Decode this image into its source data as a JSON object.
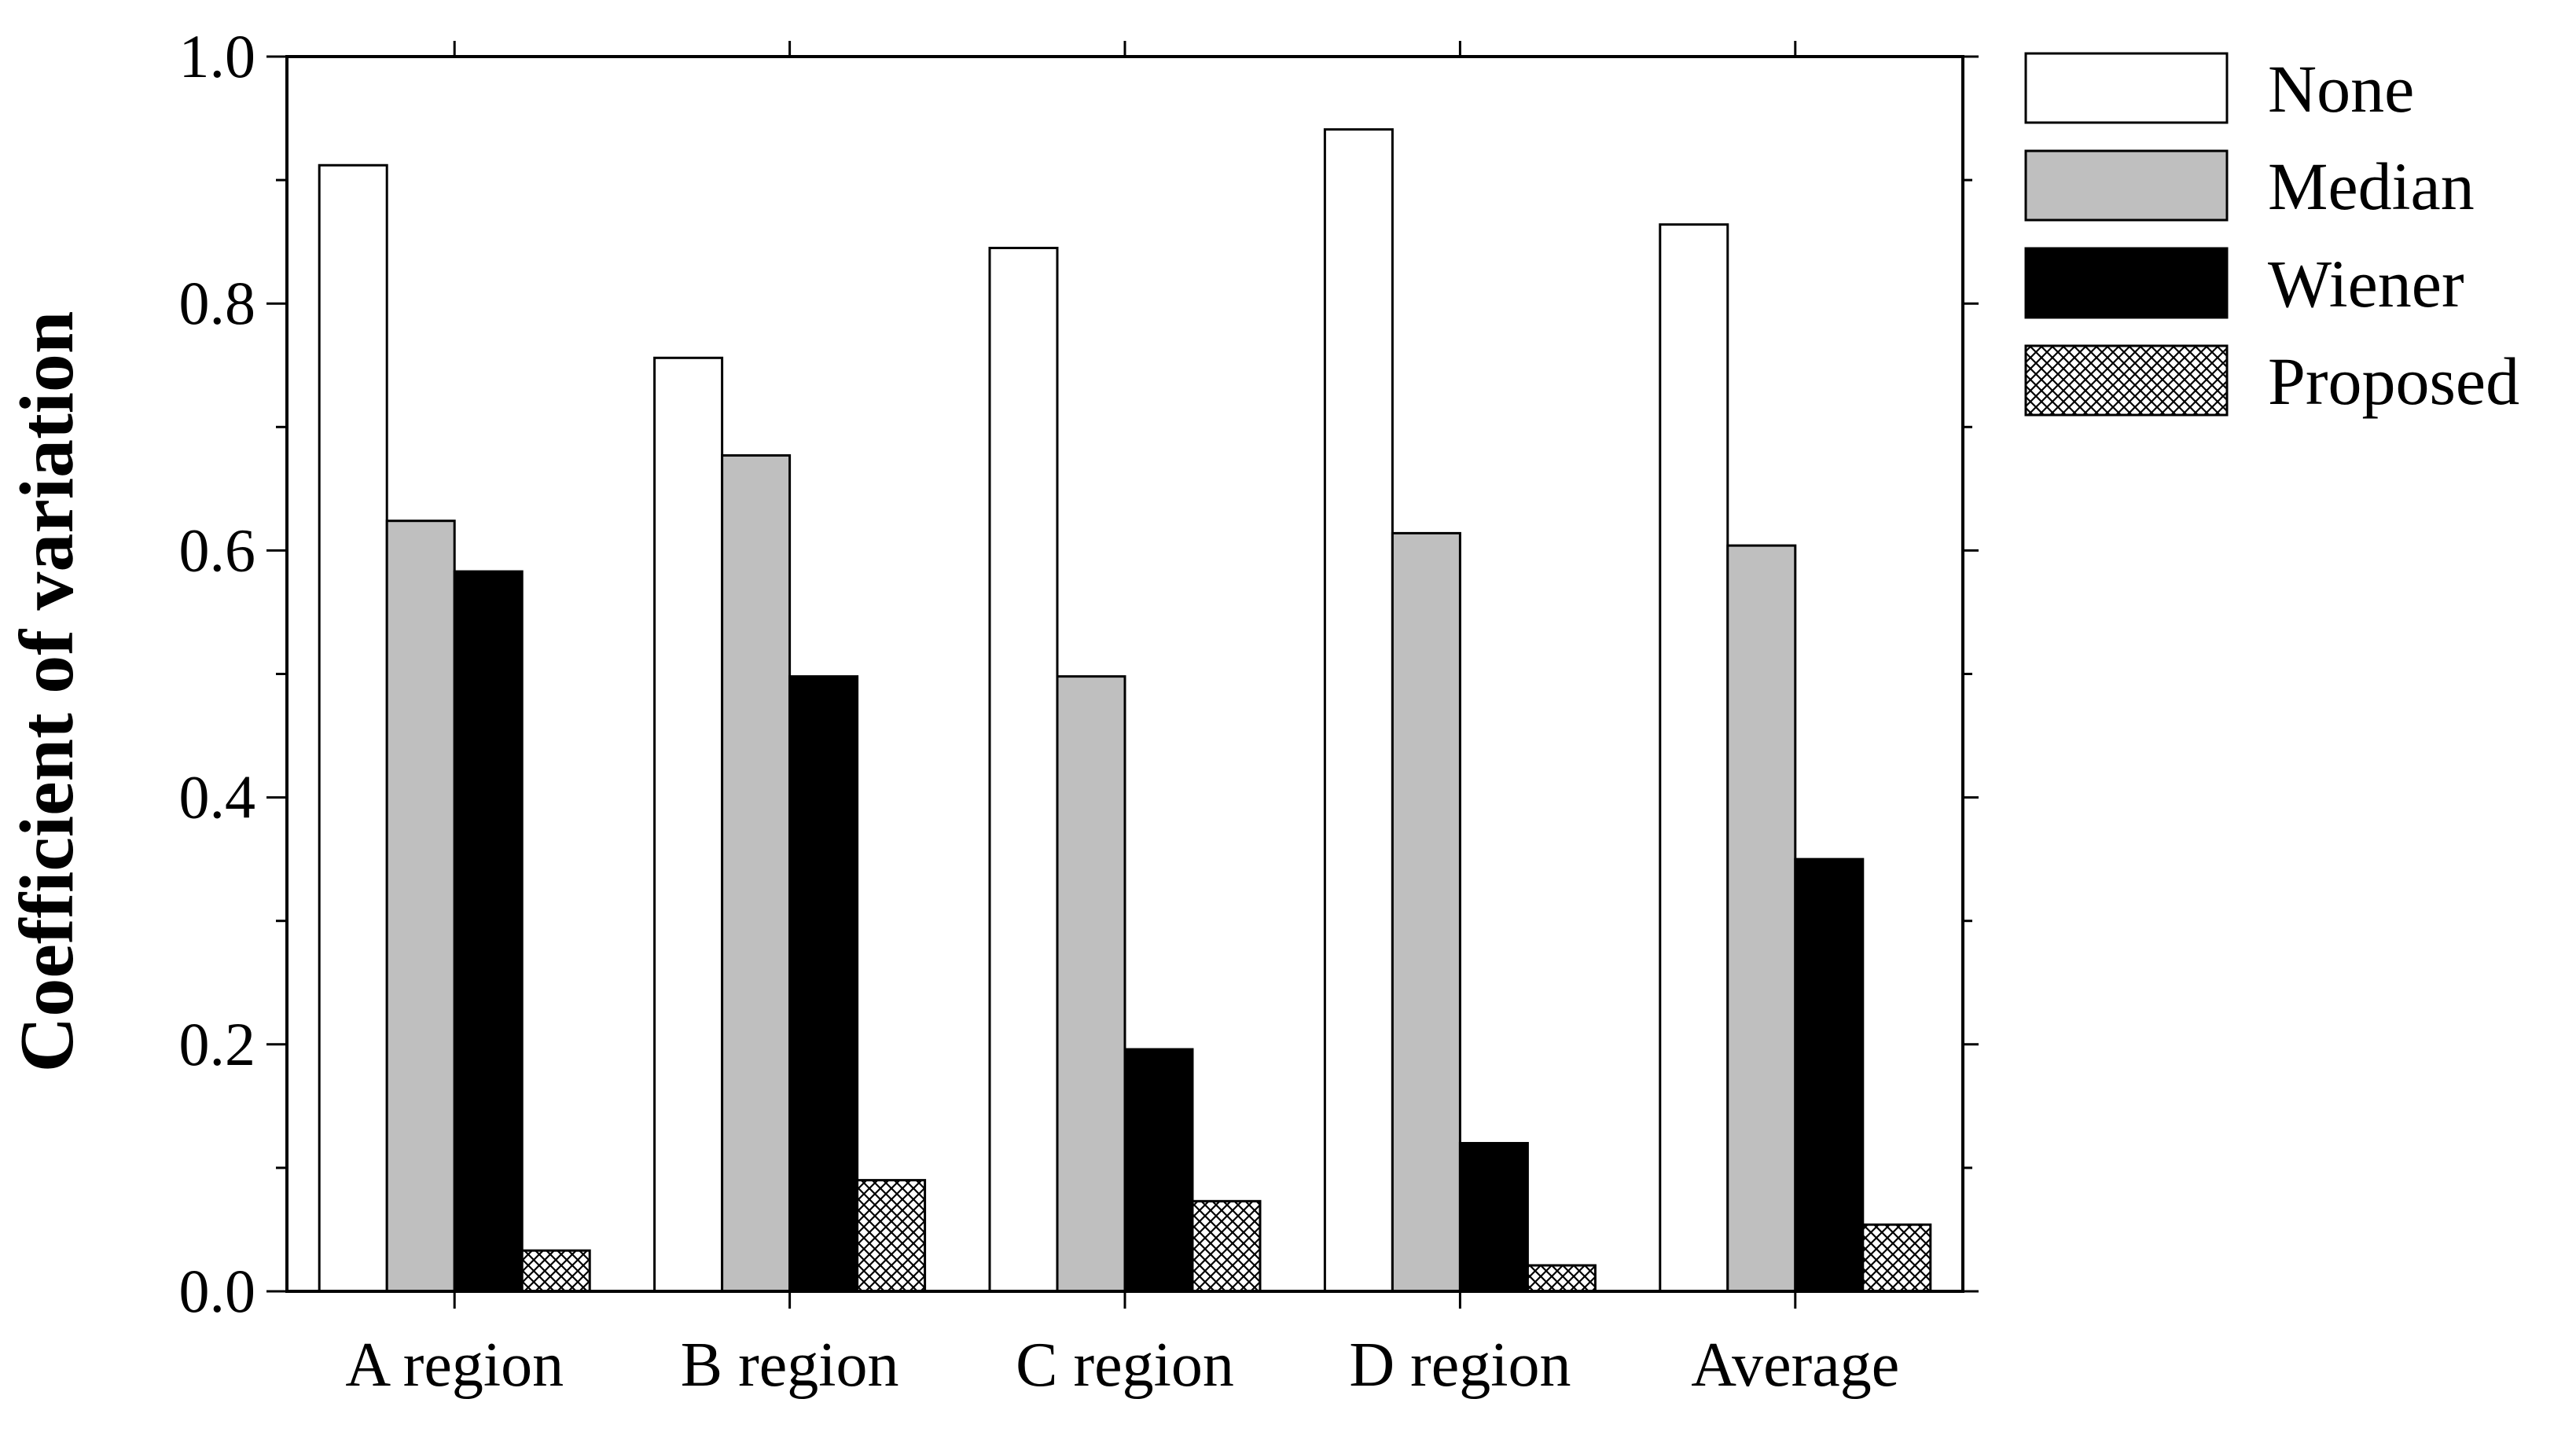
{
  "chart_data": {
    "type": "bar",
    "title": "",
    "xlabel": "",
    "ylabel": "Coefficient of variation",
    "ylim": [
      0.0,
      1.0
    ],
    "yticks": [
      "0.0",
      "0.2",
      "0.4",
      "0.6",
      "0.8",
      "1.0"
    ],
    "categories": [
      "A region",
      "B region",
      "C region",
      "D region",
      "Average"
    ],
    "legend_position": "right",
    "grid": false,
    "series": [
      {
        "name": "None",
        "style": "white",
        "color": "#ffffff",
        "values": [
          0.912,
          0.756,
          0.845,
          0.941,
          0.864
        ]
      },
      {
        "name": "Median",
        "style": "gray",
        "color": "#bfbfbf",
        "values": [
          0.624,
          0.677,
          0.498,
          0.614,
          0.604
        ]
      },
      {
        "name": "Wiener",
        "style": "black",
        "color": "#000000",
        "values": [
          0.583,
          0.498,
          0.196,
          0.12,
          0.35
        ]
      },
      {
        "name": "Proposed",
        "style": "crosshatch",
        "color": "#ffffff",
        "values": [
          0.033,
          0.09,
          0.073,
          0.021,
          0.054
        ]
      }
    ]
  }
}
